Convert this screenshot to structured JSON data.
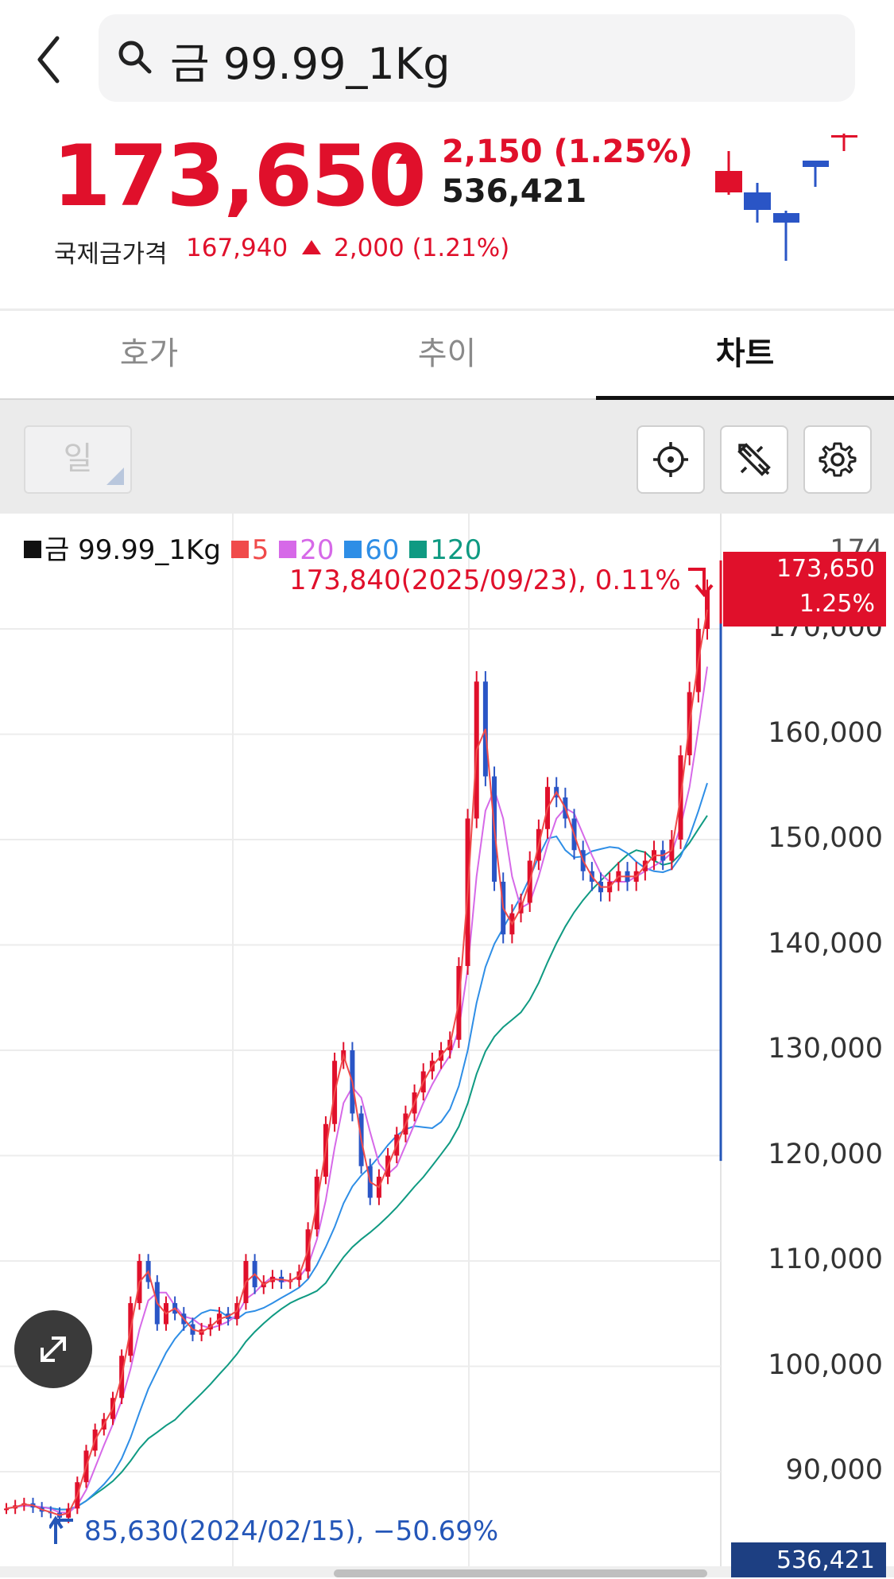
{
  "header": {
    "search_text": "금 99.99_1Kg"
  },
  "quote": {
    "price": "173,650",
    "change": "2,150 (1.25%)",
    "volume": "536,421",
    "intl_label": "국제금가격",
    "intl_price": "167,940",
    "intl_change": "2,000 (1.21%)",
    "up_color": "#e0102b",
    "down_color": "#2a55c6"
  },
  "tabs": [
    {
      "label": "호가",
      "active": false
    },
    {
      "label": "추이",
      "active": false
    },
    {
      "label": "차트",
      "active": true
    }
  ],
  "toolbar": {
    "period": "일",
    "icons": [
      "crosshair-icon",
      "drawing-tools-icon",
      "gear-icon"
    ]
  },
  "chart": {
    "legend": {
      "symbol": "금 99.99_1Kg",
      "ma5": "5",
      "ma20": "20",
      "ma60": "60",
      "ma120": "120"
    },
    "high_annotation": "173,840(2025/09/23), 0.11%",
    "low_annotation": "85,630(2024/02/15), −50.69%",
    "price_tag_price": "173,650",
    "price_tag_pct": "1.25%",
    "volume_tag": "536,421",
    "cut_tick": "174"
  },
  "chart_data": {
    "type": "line",
    "title": "",
    "xlabel": "",
    "ylabel": "",
    "ylim": [
      85000,
      178000
    ],
    "yticks": [
      "90,000",
      "100,000",
      "110,000",
      "120,000",
      "130,000",
      "140,000",
      "150,000",
      "160,000",
      "170,000"
    ],
    "ytick_values": [
      90000,
      100000,
      110000,
      120000,
      130000,
      140000,
      150000,
      160000,
      170000
    ],
    "legend_placement": "top-left",
    "grid": true,
    "series": [
      {
        "name": "금 99.99_1Kg",
        "color": "#2a55c6",
        "values": [
          86500,
          86800,
          87000,
          86600,
          86200,
          86100,
          85630,
          86500,
          89000,
          92000,
          94000,
          95000,
          97000,
          101000,
          106000,
          110000,
          108000,
          104000,
          106000,
          105000,
          104000,
          103000,
          103500,
          104000,
          105000,
          104500,
          106000,
          110000,
          107500,
          108000,
          108500,
          108000,
          108200,
          109000,
          113000,
          118000,
          123000,
          129000,
          130000,
          124000,
          119000,
          116000,
          118000,
          120000,
          122000,
          124000,
          126000,
          128000,
          129000,
          130000,
          131000,
          138000,
          152000,
          165000,
          156000,
          146000,
          141000,
          143000,
          144000,
          148000,
          151000,
          155000,
          154000,
          152000,
          149000,
          147000,
          146000,
          145000,
          146000,
          147000,
          146000,
          147000,
          148000,
          149000,
          148000,
          150000,
          158000,
          164000,
          170000,
          173650
        ]
      },
      {
        "name": "5",
        "color": "#f04a4a"
      },
      {
        "name": "20",
        "color": "#d669e8"
      },
      {
        "name": "60",
        "color": "#2e8ee6"
      },
      {
        "name": "120",
        "color": "#0f9a82"
      }
    ],
    "high": {
      "value": 173840,
      "date": "2025/09/23",
      "pct": "0.11%"
    },
    "low": {
      "value": 85630,
      "date": "2024/02/15",
      "pct": "-50.69%"
    }
  }
}
